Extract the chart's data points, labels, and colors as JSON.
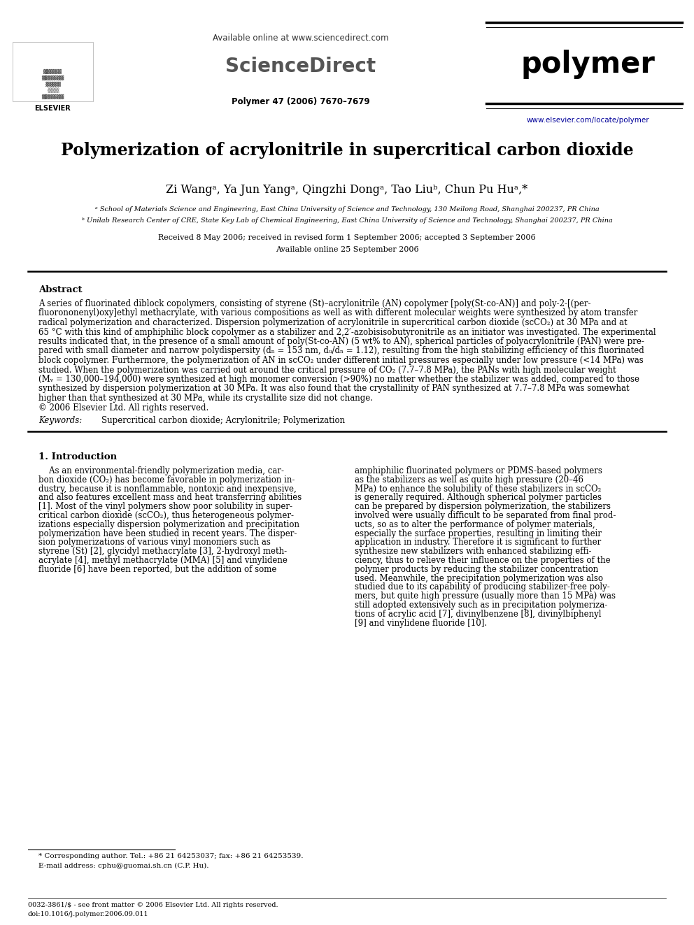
{
  "title": "Polymerization of acrylonitrile in supercritical carbon dioxide",
  "authors": "Zi Wangᵃ, Ya Jun Yangᵃ, Qingzhi Dongᵃ, Tao Liuᵇ, Chun Pu Huᵃ,*",
  "affil_a": "ᵃ School of Materials Science and Engineering, East China University of Science and Technology, 130 Meilong Road, Shanghai 200237, PR China",
  "affil_b": "ᵇ Unilab Research Center of CRE, State Key Lab of Chemical Engineering, East China University of Science and Technology, Shanghai 200237, PR China",
  "received": "Received 8 May 2006; received in revised form 1 September 2006; accepted 3 September 2006",
  "available": "Available online 25 September 2006",
  "journal": "Polymer 47 (2006) 7670–7679",
  "sd_text": "Available online at www.sciencedirect.com",
  "sd_logo": "ScienceDirect",
  "journal_name": "polymer",
  "url": "www.elsevier.com/locate/polymer",
  "abstract_title": "Abstract",
  "abstract_text": "A series of fluorinated diblock copolymers, consisting of styrene (St)–acrylonitrile (AN) copolymer [poly(St-co-AN)] and poly-2-[(per-\nfluorononenyl)oxy]ethyl methacrylate, with various compositions as well as with different molecular weights were synthesized by atom transfer\nradical polymerization and characterized. Dispersion polymerization of acrylonitrile in supercritical carbon dioxide (scCO₂) at 30 MPa and at\n65 °C with this kind of amphiphilic block copolymer as a stabilizer and 2,2′-azobisisobutyronitrile as an initiator was investigated. The experimental\nresults indicated that, in the presence of a small amount of poly(St-co-AN) (5 wt% to AN), spherical particles of polyacrylonitrile (PAN) were pre-\npared with small diameter and narrow polydispersity (dₙ = 153 nm, dᵤ/dₙ = 1.12), resulting from the high stabilizing efficiency of this fluorinated\nblock copolymer. Furthermore, the polymerization of AN in scCO₂ under different initial pressures especially under low pressure (<14 MPa) was\nstudied. When the polymerization was carried out around the critical pressure of CO₂ (7.7–7.8 MPa), the PANs with high molecular weight\n(Mᵥ = 130,000–194,000) were synthesized at high monomer conversion (>90%) no matter whether the stabilizer was added, compared to those\nsynthesized by dispersion polymerization at 30 MPa. It was also found that the crystallinity of PAN synthesized at 7.7–7.8 MPa was somewhat\nhigher than that synthesized at 30 MPa, while its crystallite size did not change.\n© 2006 Elsevier Ltd. All rights reserved.",
  "keywords_label": "Keywords",
  "keywords_text": "Supercritical carbon dioxide; Acrylonitrile; Polymerization",
  "intro_title": "1. Introduction",
  "intro_col1_lines": [
    "    As an environmental-friendly polymerization media, car-",
    "bon dioxide (CO₂) has become favorable in polymerization in-",
    "dustry, because it is nonflammable, nontoxic and inexpensive,",
    "and also features excellent mass and heat transferring abilities",
    "[1]. Most of the vinyl polymers show poor solubility in super-",
    "critical carbon dioxide (scCO₂), thus heterogeneous polymer-",
    "izations especially dispersion polymerization and precipitation",
    "polymerization have been studied in recent years. The disper-",
    "sion polymerizations of various vinyl monomers such as",
    "styrene (St) [2], glycidyl methacrylate [3], 2-hydroxyl meth-",
    "acrylate [4], methyl methacrylate (MMA) [5] and vinylidene",
    "fluoride [6] have been reported, but the addition of some"
  ],
  "intro_col2_lines": [
    "amphiphilic fluorinated polymers or PDMS-based polymers",
    "as the stabilizers as well as quite high pressure (20–46",
    "MPa) to enhance the solubility of these stabilizers in scCO₂",
    "is generally required. Although spherical polymer particles",
    "can be prepared by dispersion polymerization, the stabilizers",
    "involved were usually difficult to be separated from final prod-",
    "ucts, so as to alter the performance of polymer materials,",
    "especially the surface properties, resulting in limiting their",
    "application in industry. Therefore it is significant to further",
    "synthesize new stabilizers with enhanced stabilizing effi-",
    "ciency, thus to relieve their influence on the properties of the",
    "polymer products by reducing the stabilizer concentration",
    "used. Meanwhile, the precipitation polymerization was also",
    "studied due to its capability of producing stabilizer-free poly-",
    "mers, but quite high pressure (usually more than 15 MPa) was",
    "still adopted extensively such as in precipitation polymeriza-",
    "tions of acrylic acid [7], divinylbenzene [8], divinylbiphenyl",
    "[9] and vinylidene fluoride [10]."
  ],
  "footnote1": "* Corresponding author. Tel.: +86 21 64253037; fax: +86 21 64253539.",
  "footnote2": "E-mail address: cphu@guomai.sh.cn (C.P. Hu).",
  "footer1": "0032-3861/$ - see front matter © 2006 Elsevier Ltd. All rights reserved.",
  "footer2": "doi:10.1016/j.polymer.2006.09.011",
  "bg_color": "#ffffff",
  "text_color": "#000000",
  "link_color": "#000099"
}
